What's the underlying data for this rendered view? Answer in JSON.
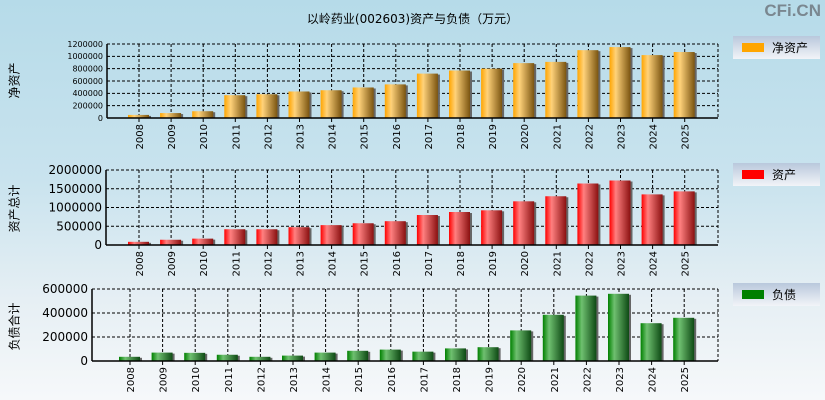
{
  "title": "以岭药业(002603)资产与负债（万元）",
  "watermark": "CFi.CN",
  "chart_data": [
    {
      "type": "bar",
      "name": "净资产",
      "ylabel": "净资产",
      "legend": "净资产",
      "color": "#ffa500",
      "ylim": [
        0,
        1200000
      ],
      "yticks": [
        0,
        200000,
        400000,
        600000,
        800000,
        1000000,
        1200000
      ],
      "categories": [
        "2008",
        "2009",
        "2010",
        "2011",
        "2012",
        "2013",
        "2014",
        "2015",
        "2016",
        "2017",
        "2018",
        "2019",
        "2020",
        "2021",
        "2022",
        "2023",
        "2024",
        "2025"
      ],
      "values": [
        50000,
        80000,
        110000,
        370000,
        385000,
        430000,
        450000,
        495000,
        545000,
        720000,
        770000,
        800000,
        890000,
        910000,
        1100000,
        1150000,
        1020000,
        1070000
      ]
    },
    {
      "type": "bar",
      "name": "资产",
      "ylabel": "资产总计",
      "legend": "资产",
      "color": "#ff0000",
      "ylim": [
        0,
        2000000
      ],
      "yticks": [
        0,
        500000,
        1000000,
        1500000,
        2000000
      ],
      "categories": [
        "2008",
        "2009",
        "2010",
        "2011",
        "2012",
        "2013",
        "2014",
        "2015",
        "2016",
        "2017",
        "2018",
        "2019",
        "2020",
        "2021",
        "2022",
        "2023",
        "2024",
        "2025"
      ],
      "values": [
        85000,
        140000,
        170000,
        420000,
        420000,
        475000,
        530000,
        580000,
        635000,
        800000,
        880000,
        925000,
        1165000,
        1300000,
        1640000,
        1720000,
        1350000,
        1430000
      ]
    },
    {
      "type": "bar",
      "name": "负债",
      "ylabel": "负债合计",
      "legend": "负债",
      "color": "#008000",
      "ylim": [
        0,
        600000
      ],
      "yticks": [
        0,
        200000,
        400000,
        600000
      ],
      "categories": [
        "2008",
        "2009",
        "2010",
        "2011",
        "2012",
        "2013",
        "2014",
        "2015",
        "2016",
        "2017",
        "2018",
        "2019",
        "2020",
        "2021",
        "2022",
        "2023",
        "2024",
        "2025"
      ],
      "values": [
        35000,
        70000,
        68000,
        52000,
        35000,
        45000,
        70000,
        85000,
        95000,
        78000,
        105000,
        115000,
        255000,
        385000,
        545000,
        560000,
        315000,
        360000
      ]
    }
  ]
}
